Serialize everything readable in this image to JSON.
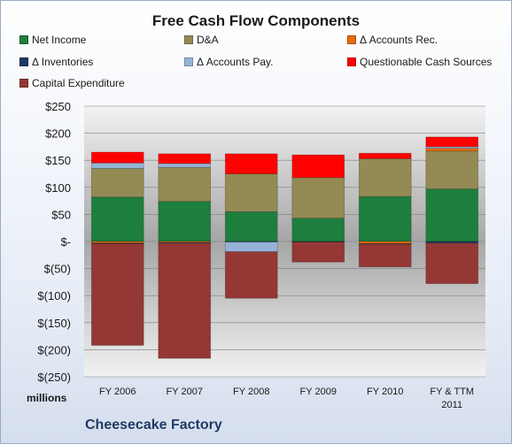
{
  "chart_data": {
    "type": "bar",
    "stacked": true,
    "title": "Free Cash Flow Components",
    "units_label": "millions",
    "company": "Cheesecake Factory",
    "ylim": [
      -250,
      250
    ],
    "y_ticks": [
      250,
      200,
      150,
      100,
      50,
      0,
      -50,
      -100,
      -150,
      -200,
      -250
    ],
    "y_tick_labels": [
      "$250",
      "$200",
      "$150",
      "$100",
      "$50",
      "$-",
      "$(50)",
      "$(100)",
      "$(150)",
      "$(200)",
      "$(250)"
    ],
    "categories": [
      "FY 2006",
      "FY 2007",
      "FY 2008",
      "FY 2009",
      "FY 2010",
      "FY & TTM 2011"
    ],
    "legend_placement": "top",
    "series": [
      {
        "name": "Net Income",
        "color": "#1e7e3e",
        "values": [
          82,
          74,
          55,
          43,
          83,
          97
        ]
      },
      {
        "name": "D&A",
        "color": "#948a54",
        "values": [
          53,
          63,
          70,
          75,
          70,
          70
        ]
      },
      {
        "name": "Δ Accounts Rec.",
        "color": "#e46c0a",
        "values": [
          -3,
          -2,
          0,
          0,
          -4,
          5
        ]
      },
      {
        "name": "Δ Inventories",
        "color": "#1f3864",
        "values": [
          -1,
          -1,
          -1,
          -1,
          -1,
          -3
        ]
      },
      {
        "name": "Δ Accounts Pay.",
        "color": "#95b3d7",
        "values": [
          10,
          7,
          -18,
          0,
          0,
          3
        ]
      },
      {
        "name": "Questionable Cash Sources",
        "color": "#ff0000",
        "values": [
          20,
          18,
          37,
          42,
          10,
          18
        ]
      },
      {
        "name": "Capital Expenditure",
        "color": "#953735",
        "values": [
          -188,
          -213,
          -86,
          -37,
          -42,
          -75
        ]
      }
    ]
  }
}
